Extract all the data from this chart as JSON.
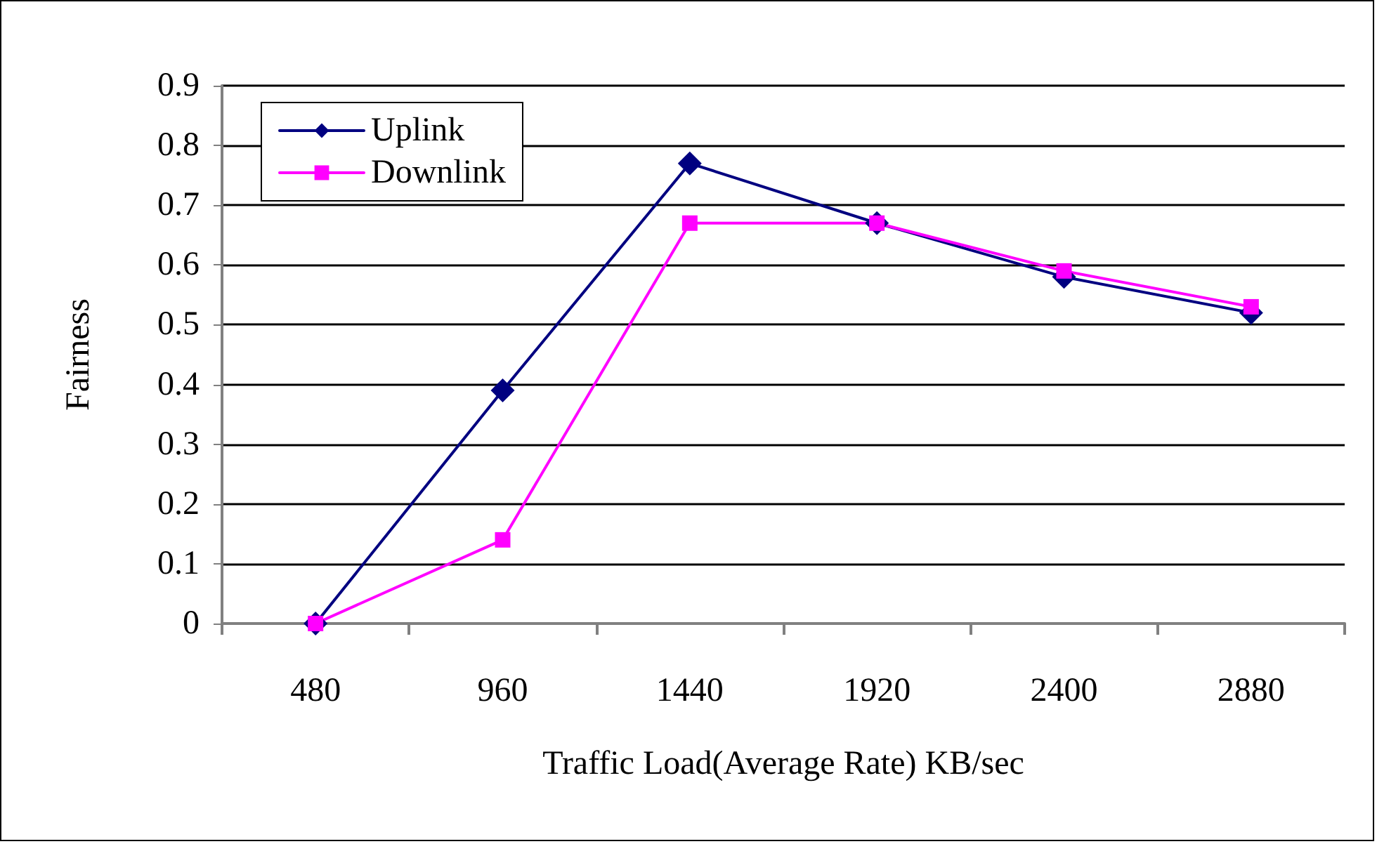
{
  "chart_data": {
    "type": "line",
    "xlabel": "Traffic Load(Average Rate) KB/sec",
    "ylabel": "Fairness",
    "categories": [
      "480",
      "960",
      "1440",
      "1920",
      "2400",
      "2880"
    ],
    "series": [
      {
        "name": "Uplink",
        "color": "#000080",
        "marker": "diamond",
        "values": [
          0,
          0.39,
          0.77,
          0.67,
          0.58,
          0.52
        ]
      },
      {
        "name": "Downlink",
        "color": "#ff00ff",
        "marker": "square",
        "values": [
          0,
          0.14,
          0.67,
          0.67,
          0.59,
          0.53
        ]
      }
    ],
    "ylim": [
      0,
      0.9
    ],
    "yticks": [
      0,
      0.1,
      0.2,
      0.3,
      0.4,
      0.5,
      0.6,
      0.7,
      0.8,
      0.9
    ],
    "grid": "y",
    "legend": "top left"
  }
}
